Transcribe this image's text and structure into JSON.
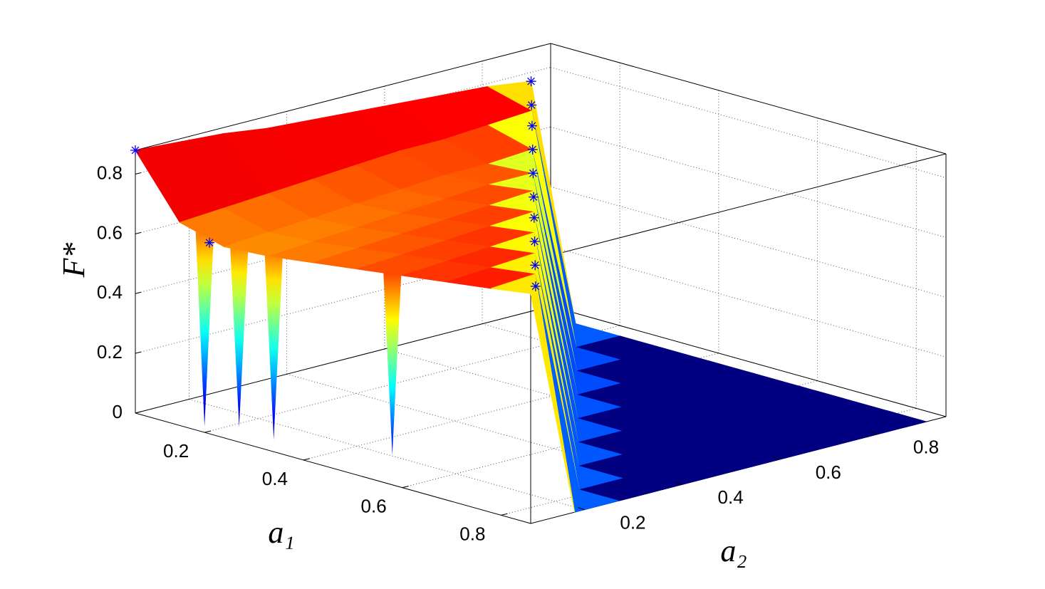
{
  "chart_data": {
    "type": "surface",
    "xlabel": "a₁",
    "ylabel": "a₂",
    "zlabel": "F*",
    "xlim": [
      0.06,
      0.86
    ],
    "ylim": [
      0.09,
      0.94
    ],
    "zlim": [
      0,
      0.88
    ],
    "xticks": [
      0.2,
      0.4,
      0.6,
      0.8
    ],
    "yticks": [
      0.2,
      0.4,
      0.6,
      0.8
    ],
    "zticks": [
      0,
      0.2,
      0.4,
      0.6,
      0.8
    ],
    "grid": true,
    "colormap": "jet",
    "x": [
      0.06,
      0.15,
      0.24,
      0.33,
      0.42,
      0.51,
      0.6,
      0.69,
      0.78,
      0.86
    ],
    "y": [
      0.09,
      0.18,
      0.27,
      0.36,
      0.45,
      0.54,
      0.63,
      0.72,
      0.81,
      0.9
    ],
    "z": [
      [
        0.88,
        0.68,
        0.64,
        0.65,
        0.67,
        0.69,
        0.71,
        0.73,
        0.75,
        0.77
      ],
      [
        0.87,
        0.69,
        0.65,
        0.66,
        0.68,
        0.7,
        0.72,
        0.74,
        0.76,
        0
      ],
      [
        0.86,
        0.7,
        0.66,
        0.67,
        0.69,
        0.71,
        0.73,
        0.75,
        0,
        0
      ],
      [
        0.84,
        0.71,
        0.67,
        0.68,
        0.7,
        0.72,
        0.74,
        0,
        0,
        0
      ],
      [
        0.83,
        0.72,
        0.68,
        0.69,
        0.71,
        0.73,
        0,
        0,
        0,
        0
      ],
      [
        0.82,
        0.73,
        0.69,
        0.7,
        0.72,
        0,
        0,
        0,
        0,
        0
      ],
      [
        0.81,
        0.73,
        0.69,
        0.7,
        0,
        0,
        0,
        0,
        0,
        0
      ],
      [
        0.8,
        0.74,
        0.7,
        0,
        0,
        0,
        0,
        0,
        0,
        0
      ],
      [
        0.79,
        0.75,
        0,
        0,
        0,
        0,
        0,
        0,
        0,
        0
      ],
      [
        0.77,
        0,
        0,
        0,
        0,
        0,
        0,
        0,
        0,
        0
      ]
    ],
    "spikes": {
      "x": [
        0.2,
        0.27,
        0.34,
        0.58
      ],
      "z": [
        0.02,
        0.05,
        0.04,
        0.1
      ]
    },
    "stars": {
      "color": "#0000ff",
      "x": [
        0.06,
        0.21,
        0.06,
        0.15,
        0.24,
        0.33,
        0.42,
        0.51,
        0.6,
        0.69,
        0.78,
        0.86
      ],
      "y": [
        0.09,
        0.09,
        0.9,
        0.81,
        0.72,
        0.63,
        0.54,
        0.45,
        0.36,
        0.27,
        0.18,
        0.1
      ],
      "z": [
        0.88,
        0.64,
        0.77,
        0.77,
        0.78,
        0.78,
        0.78,
        0.78,
        0.79,
        0.79,
        0.79,
        0.79
      ]
    }
  }
}
